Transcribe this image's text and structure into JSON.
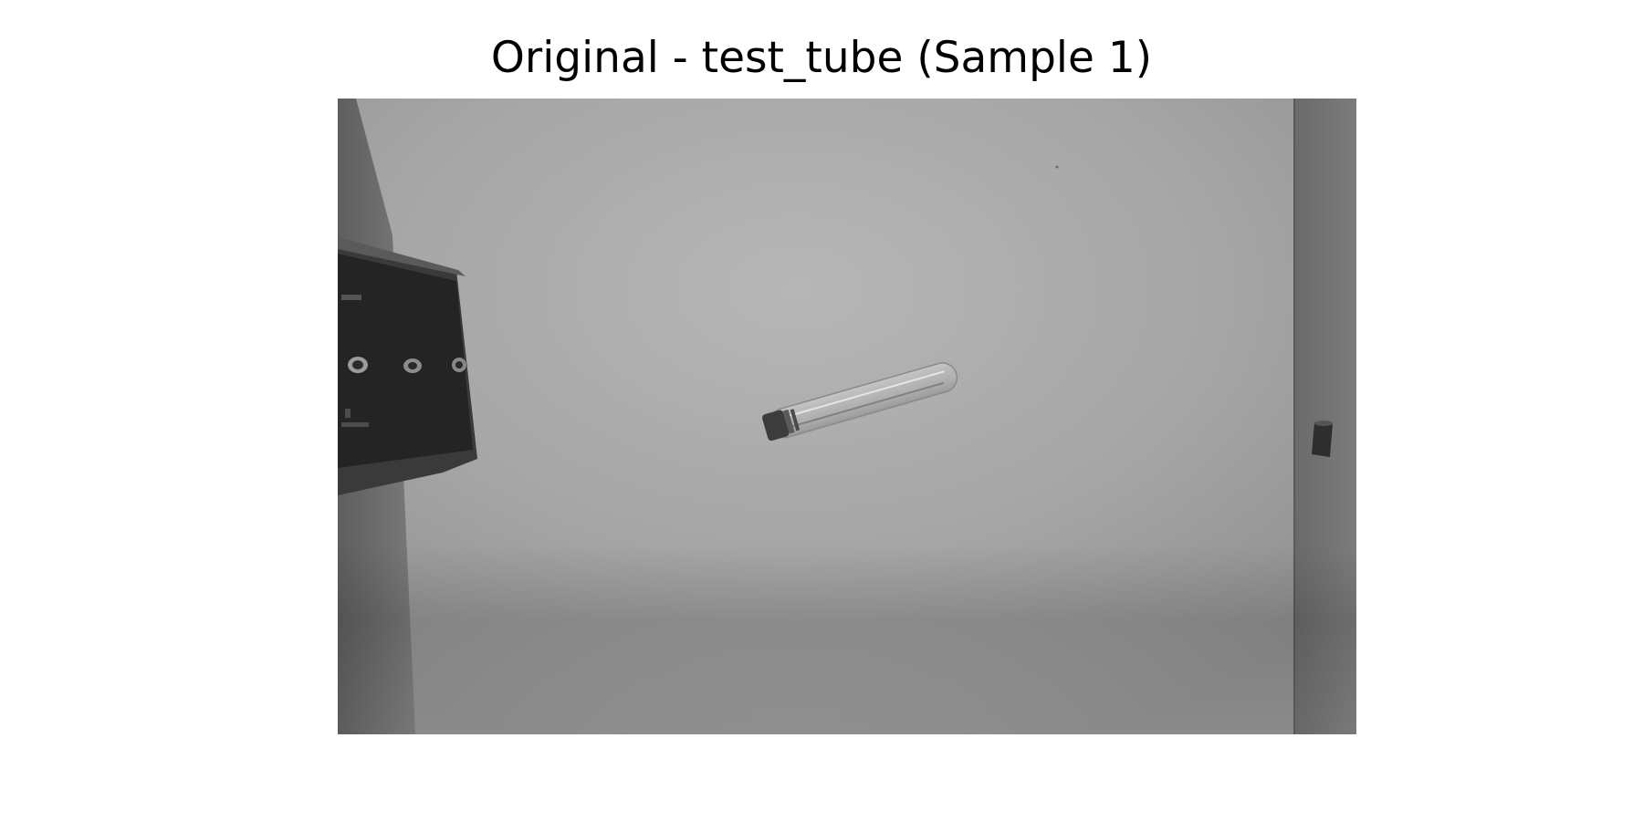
{
  "figure": {
    "title": "Original - test_tube (Sample 1)"
  },
  "photo": {
    "colors": {
      "paper": "#aaaaaa",
      "left_wall": "#6d6d6d",
      "right_wall": "#707070",
      "device_body": "#242424",
      "tube_cap": "#3c3c3c"
    }
  }
}
